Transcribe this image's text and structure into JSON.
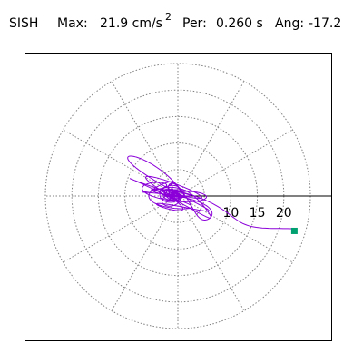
{
  "header": {
    "station": "SISH",
    "max_label": "Max:",
    "max_value": "21.9 cm/s",
    "max_exp": "2",
    "per_label": "Per:",
    "per_value": "0.260 s",
    "ang_label": "Ang:",
    "ang_value": "-17.2"
  },
  "chart_data": {
    "type": "scatter",
    "title": "",
    "xlabel": "",
    "ylabel": "",
    "radial_ticks": [
      "10",
      "15",
      "20"
    ],
    "rmax": 25,
    "trace_color": "#8b00d9",
    "end_marker_color": "#00a070",
    "end_point": {
      "x": 21.9,
      "y": -6.5
    }
  }
}
